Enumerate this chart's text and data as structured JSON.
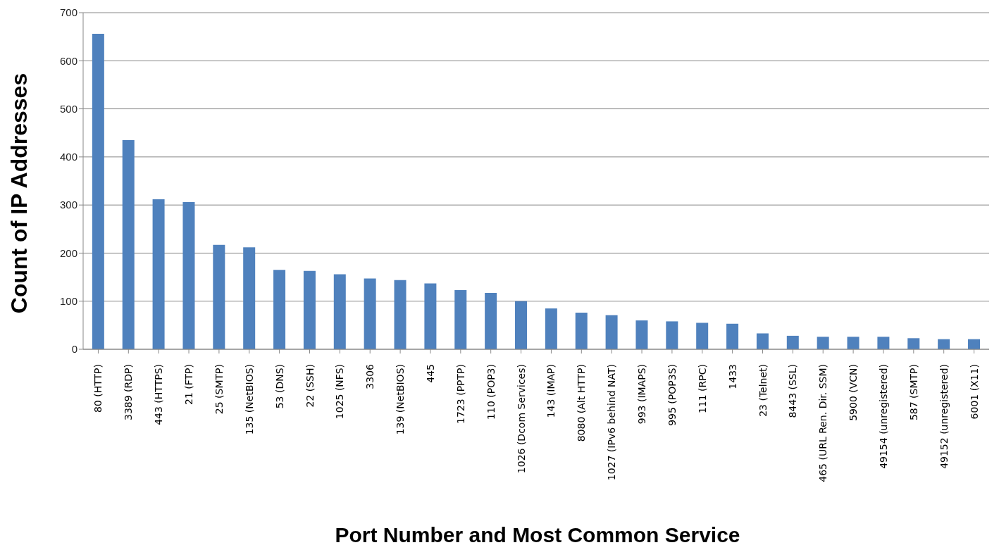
{
  "chart_data": {
    "type": "bar",
    "xlabel": "Port Number and Most Common Service",
    "ylabel": "Count of IP Addresses",
    "categories": [
      "80 (HTTP)",
      "3389 (RDP)",
      "443 (HTTPS)",
      "21 (FTP)",
      "25 (SMTP)",
      "135 (NetBIOS)",
      "53 (DNS)",
      "22 (SSH)",
      "1025 (NFS)",
      "3306",
      "139 (NetBIOS)",
      "445",
      "1723 (PPTP)",
      "110 (POP3)",
      "1026 (Dcom Services)",
      "143 (IMAP)",
      "8080 (Alt HTTP)",
      "1027 (IPv6 behind NAT)",
      "993 (IMAPS)",
      "995 (POP3S)",
      "111 (RPC)",
      "1433",
      "23 (Telnet)",
      "8443 (SSL)",
      "465 (URL Ren. Dir. SSM)",
      "5900 (VCN)",
      "49154 (unregistered)",
      "587 (SMTP)",
      "49152 (unregistered)",
      "6001 (X11)"
    ],
    "values": [
      656,
      435,
      312,
      306,
      217,
      212,
      165,
      163,
      156,
      147,
      144,
      137,
      123,
      117,
      100,
      85,
      76,
      71,
      60,
      58,
      55,
      53,
      33,
      28,
      26,
      26,
      26,
      23,
      21,
      21
    ],
    "color": "#4f81bd",
    "ylim": [
      0,
      700
    ],
    "yticks": [
      0,
      100,
      200,
      300,
      400,
      500,
      600,
      700
    ],
    "grid": "y",
    "legend": false
  }
}
